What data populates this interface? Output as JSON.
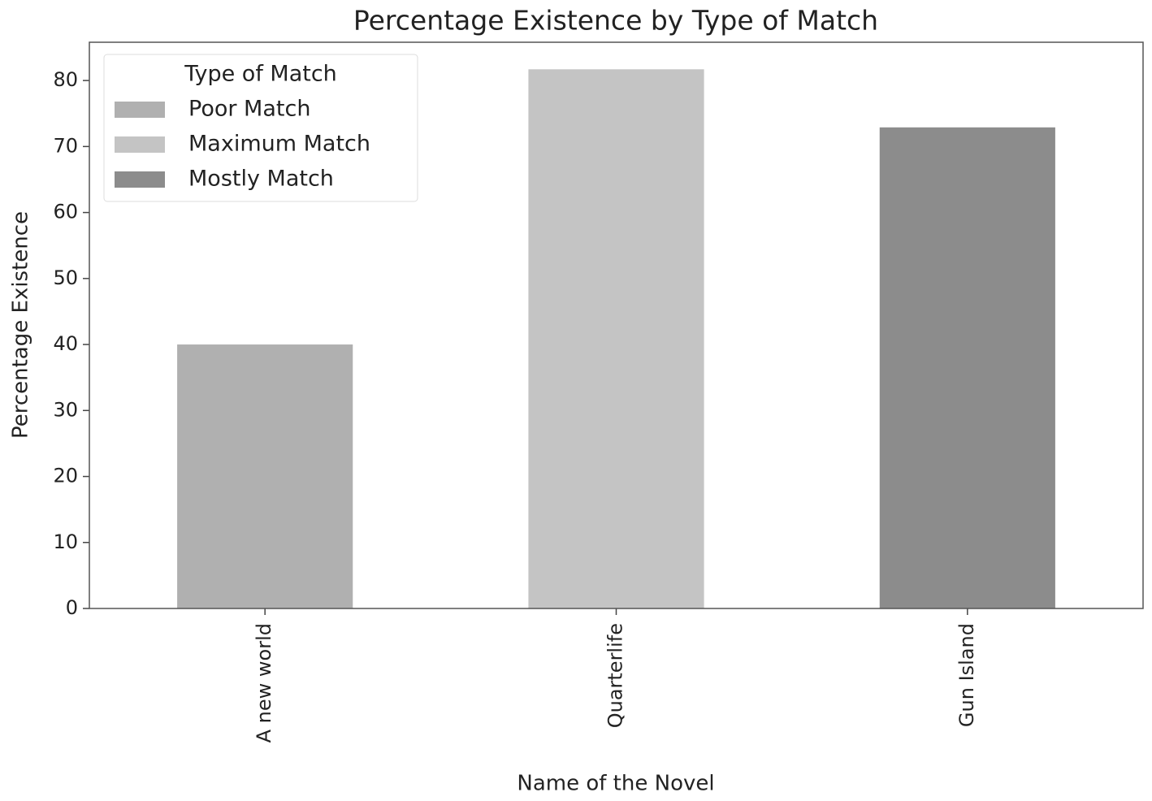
{
  "chart_data": {
    "type": "bar",
    "title": "Percentage Existence by Type of Match",
    "x_label": "Name of the Novel",
    "y_label": "Percentage Existence",
    "categories": [
      "A new world",
      "Quarterlife",
      "Gun Island"
    ],
    "series": [
      {
        "name": "Poor Match",
        "color": "#b0b0b0",
        "values": [
          40,
          null,
          null
        ]
      },
      {
        "name": "Maximum Match",
        "color": "#c4c4c4",
        "values": [
          null,
          81.7,
          null
        ]
      },
      {
        "name": "Mostly Match",
        "color": "#8c8c8c",
        "values": [
          null,
          null,
          72.9
        ]
      }
    ],
    "legend_title": "Type of Match",
    "legend": "upper left",
    "ylim": [
      0,
      85.8
    ],
    "yticks": [
      0,
      10,
      20,
      30,
      40,
      50,
      60,
      70,
      80
    ],
    "grid": false
  }
}
